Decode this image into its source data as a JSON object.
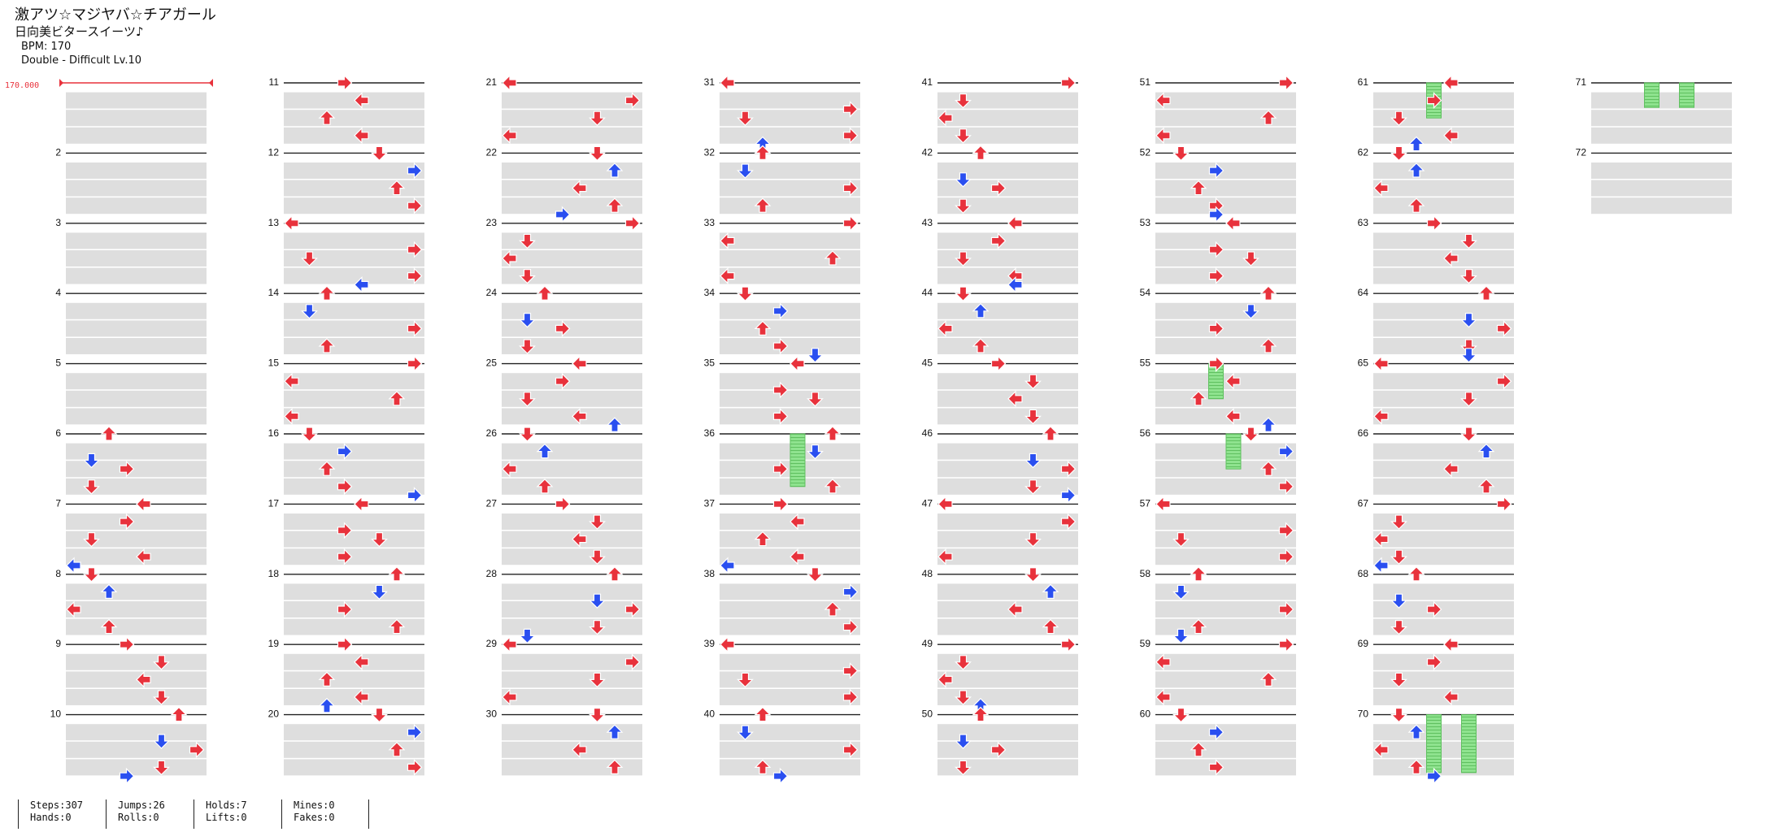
{
  "song": {
    "title": "激アツ☆マジヤバ☆チアガール",
    "artist": "日向美ビタースイーツ♪",
    "bpm_line": "BPM: 170",
    "difficulty_line": "Double - Difficult  Lv.10"
  },
  "bpm_marker": "170.000",
  "columns": [
    {
      "measure_labels": [
        "",
        "2",
        "3",
        "4",
        "5",
        "6",
        "7",
        "8",
        "9",
        "10"
      ]
    },
    {
      "measure_labels": [
        "11",
        "12",
        "13",
        "14",
        "15",
        "16",
        "17",
        "18",
        "19",
        "20"
      ]
    },
    {
      "measure_labels": [
        "21",
        "22",
        "23",
        "24",
        "25",
        "26",
        "27",
        "28",
        "29",
        "30"
      ]
    },
    {
      "measure_labels": [
        "31",
        "32",
        "33",
        "34",
        "35",
        "36",
        "37",
        "38",
        "39",
        "40"
      ]
    },
    {
      "measure_labels": [
        "41",
        "42",
        "43",
        "44",
        "45",
        "46",
        "47",
        "48",
        "49",
        "50"
      ]
    },
    {
      "measure_labels": [
        "51",
        "52",
        "53",
        "54",
        "55",
        "56",
        "57",
        "58",
        "59",
        "60"
      ]
    },
    {
      "measure_labels": [
        "61",
        "62",
        "63",
        "64",
        "65",
        "66",
        "67",
        "68",
        "69",
        "70"
      ]
    },
    {
      "measure_labels": [
        "71",
        "72"
      ]
    }
  ],
  "stats": [
    {
      "line1": "Steps:307",
      "line2": "Hands:0"
    },
    {
      "line1": "Jumps:26",
      "line2": "Rolls:0"
    },
    {
      "line1": "Holds:7",
      "line2": "Lifts:0"
    },
    {
      "line1": "Mines:0",
      "line2": "Fakes:0"
    }
  ],
  "colors": {
    "quarter_note": "#e8323c",
    "eighth_note": "#2a4ff0",
    "hold": "#7ee07e",
    "beat_band": "#dedede",
    "measure_line": "#222222"
  }
}
